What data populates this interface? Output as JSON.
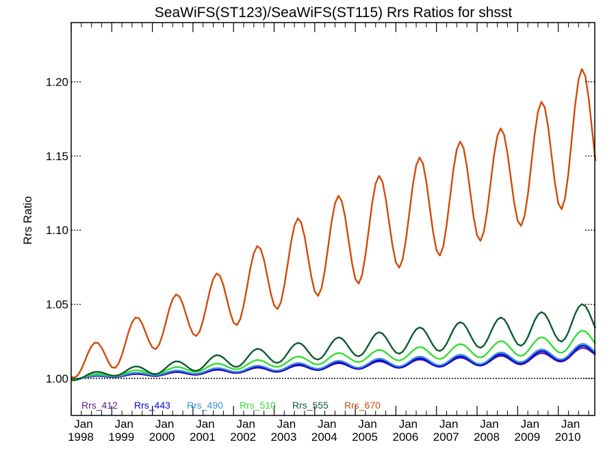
{
  "chart_data": {
    "type": "line",
    "title": "SeaWiFS(ST123)/SeaWiFS(ST115)  Rrs Ratios for shsst",
    "xlabel": "",
    "ylabel": "Rrs Ratio",
    "xlim": [
      1998.0,
      2010.9
    ],
    "ylim": [
      0.975,
      1.24
    ],
    "y_ticks": [
      {
        "value": 1.0,
        "label": "1.00"
      },
      {
        "value": 1.05,
        "label": "1.05"
      },
      {
        "value": 1.1,
        "label": "1.10"
      },
      {
        "value": 1.15,
        "label": "1.15"
      },
      {
        "value": 1.2,
        "label": "1.20"
      }
    ],
    "x_ticks": [
      {
        "value": 1998,
        "month": "Jan",
        "year": "1998"
      },
      {
        "value": 1999,
        "month": "Jan",
        "year": "1999"
      },
      {
        "value": 2000,
        "month": "Jan",
        "year": "2000"
      },
      {
        "value": 2001,
        "month": "Jan",
        "year": "2001"
      },
      {
        "value": 2002,
        "month": "Jan",
        "year": "2002"
      },
      {
        "value": 2003,
        "month": "Jan",
        "year": "2003"
      },
      {
        "value": 2004,
        "month": "Jan",
        "year": "2004"
      },
      {
        "value": 2005,
        "month": "Jan",
        "year": "2005"
      },
      {
        "value": 2006,
        "month": "Jan",
        "year": "2006"
      },
      {
        "value": 2007,
        "month": "Jan",
        "year": "2007"
      },
      {
        "value": 2008,
        "month": "Jan",
        "year": "2008"
      },
      {
        "value": 2009,
        "month": "Jan",
        "year": "2009"
      },
      {
        "value": 2010,
        "month": "Jan",
        "year": "2010"
      }
    ],
    "reference_line": {
      "y": 1.0,
      "style": "dotted",
      "color": "#000000"
    },
    "legend_position": "bottom-left, inside plot",
    "series": [
      {
        "name": "Rrs_412",
        "color": "#5a1a8a",
        "seasonal_amp": 0.02,
        "mean": [
          [
            1998.0,
            1.0
          ],
          [
            1999.0,
            1.0015
          ],
          [
            2000.0,
            1.0025
          ],
          [
            2001.0,
            1.0035
          ],
          [
            2002.0,
            1.005
          ],
          [
            2003.0,
            1.006
          ],
          [
            2004.0,
            1.0075
          ],
          [
            2005.0,
            1.0085
          ],
          [
            2006.0,
            1.0095
          ],
          [
            2007.0,
            1.0105
          ],
          [
            2008.0,
            1.0115
          ],
          [
            2009.0,
            1.0125
          ],
          [
            2010.0,
            1.0145
          ],
          [
            2010.9,
            1.018
          ]
        ],
        "amp": [
          [
            1998.0,
            0.0005
          ],
          [
            2002.0,
            0.0015
          ],
          [
            2006.0,
            0.0025
          ],
          [
            2010.0,
            0.0035
          ],
          [
            2010.9,
            0.004
          ]
        ]
      },
      {
        "name": "Rrs_443",
        "color": "#0000ee",
        "seasonal_amp": 0.02,
        "mean": [
          [
            1998.0,
            1.0
          ],
          [
            1999.0,
            1.0018
          ],
          [
            2000.0,
            1.003
          ],
          [
            2001.0,
            1.004
          ],
          [
            2002.0,
            1.0055
          ],
          [
            2003.0,
            1.0065
          ],
          [
            2004.0,
            1.008
          ],
          [
            2005.0,
            1.009
          ],
          [
            2006.0,
            1.01
          ],
          [
            2007.0,
            1.011
          ],
          [
            2008.0,
            1.012
          ],
          [
            2009.0,
            1.0135
          ],
          [
            2010.0,
            1.0155
          ],
          [
            2010.9,
            1.019
          ]
        ],
        "amp": [
          [
            1998.0,
            0.0005
          ],
          [
            2002.0,
            0.0015
          ],
          [
            2006.0,
            0.0028
          ],
          [
            2010.0,
            0.0038
          ],
          [
            2010.9,
            0.0045
          ]
        ]
      },
      {
        "name": "Rrs_490",
        "color": "#3a8fd0",
        "seasonal_amp": 0.02,
        "mean": [
          [
            1998.0,
            1.0
          ],
          [
            1999.0,
            1.002
          ],
          [
            2000.0,
            1.0033
          ],
          [
            2001.0,
            1.0045
          ],
          [
            2002.0,
            1.006
          ],
          [
            2003.0,
            1.0072
          ],
          [
            2004.0,
            1.0088
          ],
          [
            2005.0,
            1.0098
          ],
          [
            2006.0,
            1.011
          ],
          [
            2007.0,
            1.012
          ],
          [
            2008.0,
            1.013
          ],
          [
            2009.0,
            1.0145
          ],
          [
            2010.0,
            1.0165
          ],
          [
            2010.9,
            1.02
          ]
        ],
        "amp": [
          [
            1998.0,
            0.0006
          ],
          [
            2002.0,
            0.0017
          ],
          [
            2006.0,
            0.003
          ],
          [
            2010.0,
            0.004
          ],
          [
            2010.9,
            0.0048
          ]
        ]
      },
      {
        "name": "Rrs_510",
        "color": "#33dd33",
        "seasonal_amp": 0.02,
        "mean": [
          [
            1998.0,
            1.0
          ],
          [
            1999.0,
            1.003
          ],
          [
            2000.0,
            1.0045
          ],
          [
            2001.0,
            1.0065
          ],
          [
            2002.0,
            1.0085
          ],
          [
            2003.0,
            1.0105
          ],
          [
            2004.0,
            1.0125
          ],
          [
            2005.0,
            1.0145
          ],
          [
            2006.0,
            1.016
          ],
          [
            2007.0,
            1.0175
          ],
          [
            2008.0,
            1.019
          ],
          [
            2009.0,
            1.0205
          ],
          [
            2010.0,
            1.023
          ],
          [
            2010.9,
            1.027
          ]
        ],
        "amp": [
          [
            1998.0,
            0.001
          ],
          [
            2002.0,
            0.0025
          ],
          [
            2006.0,
            0.004
          ],
          [
            2010.0,
            0.006
          ],
          [
            2010.9,
            0.007
          ]
        ]
      },
      {
        "name": "Rrs_555",
        "color": "#0b5a2e",
        "seasonal_amp": 0.02,
        "mean": [
          [
            1998.0,
            1.0
          ],
          [
            1999.0,
            1.004
          ],
          [
            2000.0,
            1.006
          ],
          [
            2001.0,
            1.009
          ],
          [
            2002.0,
            1.0125
          ],
          [
            2003.0,
            1.016
          ],
          [
            2004.0,
            1.019
          ],
          [
            2005.0,
            1.022
          ],
          [
            2006.0,
            1.0245
          ],
          [
            2007.0,
            1.027
          ],
          [
            2008.0,
            1.03
          ],
          [
            2009.0,
            1.032
          ],
          [
            2010.0,
            1.0355
          ],
          [
            2010.9,
            1.04
          ]
        ],
        "amp": [
          [
            1998.0,
            0.0015
          ],
          [
            2002.0,
            0.005
          ],
          [
            2006.0,
            0.008
          ],
          [
            2010.0,
            0.011
          ],
          [
            2010.9,
            0.012
          ]
        ]
      },
      {
        "name": "Rrs_670",
        "color": "#d04a05",
        "seasonal_amp": 0.02,
        "mean": [
          [
            1998.0,
            1.008
          ],
          [
            1999.0,
            1.018
          ],
          [
            2000.0,
            1.034
          ],
          [
            2001.0,
            1.045
          ],
          [
            2002.0,
            1.056
          ],
          [
            2003.0,
            1.072
          ],
          [
            2004.0,
            1.085
          ],
          [
            2005.0,
            1.096
          ],
          [
            2006.0,
            1.108
          ],
          [
            2007.0,
            1.118
          ],
          [
            2008.0,
            1.128
          ],
          [
            2009.0,
            1.137
          ],
          [
            2010.0,
            1.155
          ],
          [
            2010.9,
            1.17
          ]
        ],
        "amp": [
          [
            1998.0,
            0.008
          ],
          [
            1999.0,
            0.012
          ],
          [
            2000.0,
            0.015
          ],
          [
            2001.0,
            0.017
          ],
          [
            2002.0,
            0.021
          ],
          [
            2003.0,
            0.026
          ],
          [
            2004.0,
            0.03
          ],
          [
            2005.0,
            0.033
          ],
          [
            2006.0,
            0.034
          ],
          [
            2007.0,
            0.036
          ],
          [
            2008.0,
            0.036
          ],
          [
            2009.0,
            0.035
          ],
          [
            2010.0,
            0.042
          ],
          [
            2010.9,
            0.045
          ]
        ]
      }
    ]
  }
}
